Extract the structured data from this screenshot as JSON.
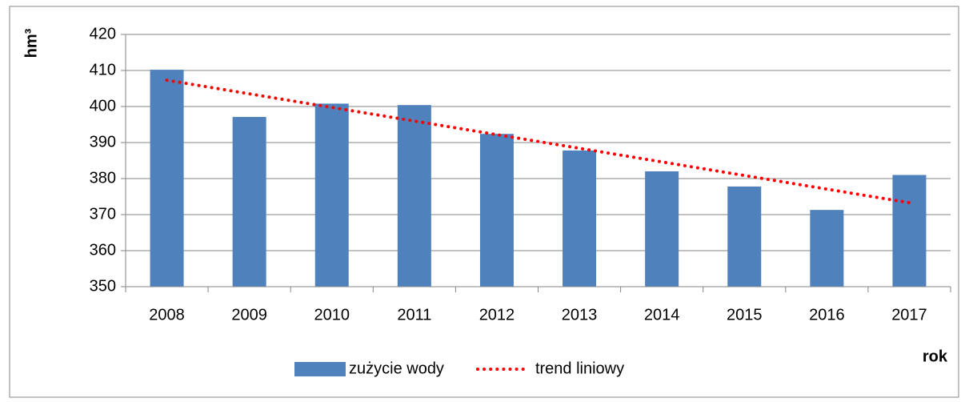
{
  "chart_data": {
    "type": "bar",
    "y_label": "hm³",
    "x_label": "rok",
    "categories": [
      "2008",
      "2009",
      "2010",
      "2011",
      "2012",
      "2013",
      "2014",
      "2015",
      "2016",
      "2017"
    ],
    "series": [
      {
        "name": "zużycie wody",
        "type": "bar",
        "color": "#4f81bd",
        "values": [
          410.2,
          397.1,
          400.8,
          400.4,
          392.4,
          387.8,
          382,
          377.8,
          371.3,
          381
        ]
      },
      {
        "name": "trend liniowy",
        "type": "line",
        "line_style": "dotted",
        "color": "#ff0000",
        "values": [
          407.3,
          403.52,
          399.74,
          395.97,
          392.19,
          388.41,
          384.63,
          380.86,
          377.08,
          373.3
        ]
      }
    ],
    "ylim": [
      350,
      420
    ],
    "yticks": [
      350,
      360,
      370,
      380,
      390,
      400,
      410,
      420
    ],
    "grid": true,
    "legend": "bottom"
  }
}
